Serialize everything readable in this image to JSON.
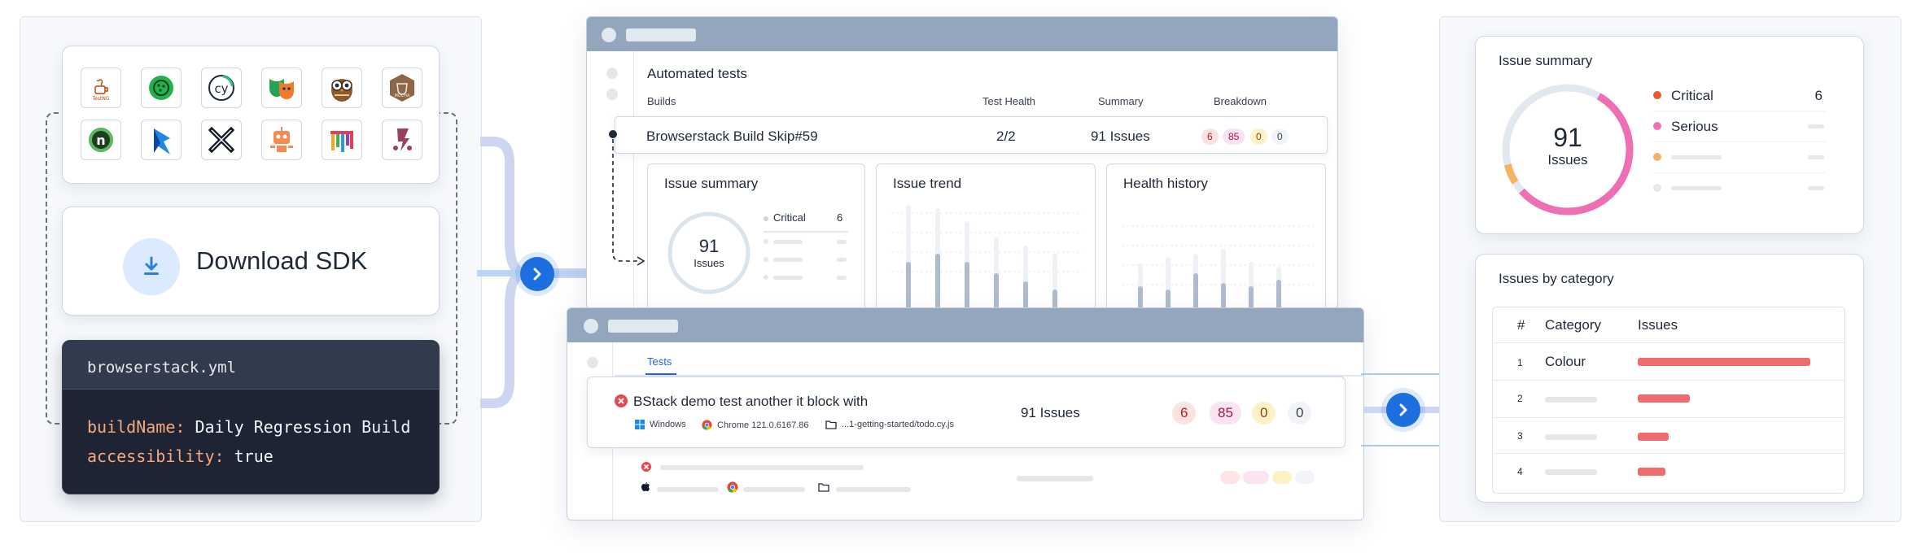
{
  "left": {
    "frameworks": [
      "TestNG",
      "Cucumber",
      "Cypress",
      "Gauge",
      "NightwatchJS",
      "Mocha",
      "Nightwatch",
      "Playwright",
      "Selenium",
      "Robot",
      "WebdriverIO",
      "Jest"
    ],
    "download_label": "Download SDK",
    "yml": {
      "filename": "browserstack.yml",
      "lines": [
        {
          "key": "buildName:",
          "value": "Daily Regression Build"
        },
        {
          "key": "accessibility:",
          "value": "true"
        }
      ]
    }
  },
  "automated": {
    "title": "Automated tests",
    "columns": {
      "builds": "Builds",
      "health": "Test Health",
      "summary": "Summary",
      "breakdown": "Breakdown"
    },
    "build": {
      "name": "Browserstack Build Skip#59",
      "health": "2/2",
      "summary": "91 Issues",
      "breakdown": [
        "6",
        "85",
        "0",
        "0"
      ]
    },
    "issue_summary": {
      "title": "Issue summary",
      "total": "91",
      "total_label": "Issues",
      "first_label": "Critical",
      "first_value": "6"
    },
    "issue_trend_title": "Issue trend",
    "health_history_title": "Health history"
  },
  "tests": {
    "tab": "Tests",
    "row": {
      "name": "BStack demo test another it block with",
      "os": "Windows",
      "browser": "Chrome 121.0.6167.86",
      "file": "...1-getting-started/todo.cy.js",
      "issues": "91 Issues",
      "breakdown": [
        "6",
        "85",
        "0",
        "0"
      ]
    }
  },
  "issue_summary_right": {
    "title": "Issue summary",
    "total": "91",
    "total_label": "Issues",
    "legend": [
      {
        "label": "Critical",
        "value": "6",
        "color": "#e8582a"
      },
      {
        "label": "Serious",
        "value": "",
        "color": "#ee6fb4"
      }
    ]
  },
  "issues_by_category": {
    "title": "Issues by category",
    "headers": {
      "num": "#",
      "category": "Category",
      "issues": "Issues"
    },
    "rows": [
      {
        "num": "1",
        "category": "Colour",
        "value": 100
      },
      {
        "num": "2",
        "category": "",
        "value": 30
      },
      {
        "num": "3",
        "category": "",
        "value": 18
      },
      {
        "num": "4",
        "category": "",
        "value": 16
      }
    ]
  },
  "colors": {
    "accent": "#1d6fe0",
    "critical": "#e8582a",
    "serious": "#ee6fb4",
    "moderate": "#f5b461",
    "bar": "#ee6b6e"
  }
}
